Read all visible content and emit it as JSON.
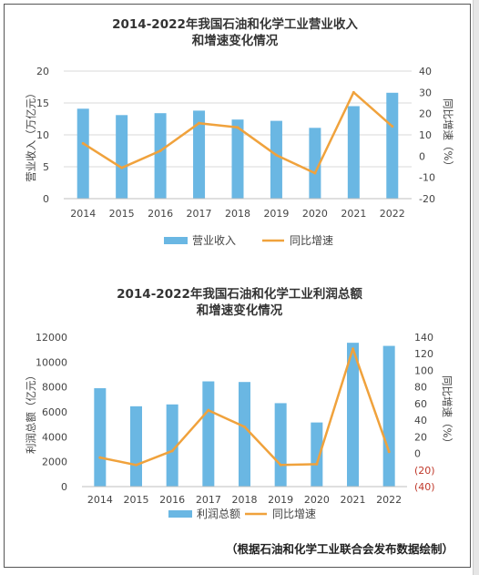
{
  "source_note": "（根据石油和化学工业联合会发布数据绘制）",
  "colors": {
    "bar": "#6ab7e3",
    "line": "#f0a23c",
    "grid": "#d9d9d9",
    "neg": "#c0392b"
  },
  "chart_data": [
    {
      "type": "bar+line",
      "title_lines": [
        "2014-2022年我国石油和化学工业营业收入",
        "和增速变化情况"
      ],
      "categories": [
        "2014",
        "2015",
        "2016",
        "2017",
        "2018",
        "2019",
        "2020",
        "2021",
        "2022"
      ],
      "series": [
        {
          "name": "营业收入",
          "type": "bar",
          "axis": "left",
          "values": [
            14.1,
            13.1,
            13.4,
            13.8,
            12.4,
            12.2,
            11.1,
            14.5,
            16.6
          ]
        },
        {
          "name": "同比增速",
          "type": "line",
          "axis": "right",
          "values": [
            6.0,
            -5.5,
            2.5,
            15.5,
            13.5,
            0.5,
            -8.0,
            30.0,
            14.0
          ]
        }
      ],
      "ylabel": "营业收入（万亿元）",
      "y2label": "同比增速（%）",
      "ylim": [
        0,
        20
      ],
      "yticks": [
        0,
        5,
        10,
        15,
        20
      ],
      "ytick_labels": [
        "0",
        "5",
        "10",
        "15",
        "20"
      ],
      "y2lim": [
        -20,
        40
      ],
      "y2ticks": [
        -20,
        -10,
        0,
        10,
        20,
        30,
        40
      ],
      "y2tick_labels": [
        "-20",
        "-10",
        "0",
        "10",
        "20",
        "30",
        "40"
      ],
      "grid": true,
      "legend_position": "bottom"
    },
    {
      "type": "bar+line",
      "title_lines": [
        "2014-2022年我国石油和化学工业利润总额",
        "和增速变化情况"
      ],
      "categories": [
        "2014",
        "2015",
        "2016",
        "2017",
        "2018",
        "2019",
        "2020",
        "2021",
        "2022"
      ],
      "series": [
        {
          "name": "利润总额",
          "type": "bar",
          "axis": "left",
          "values": [
            7900,
            6450,
            6600,
            8450,
            8400,
            6700,
            5150,
            11550,
            11300
          ]
        },
        {
          "name": "同比增速",
          "type": "line",
          "axis": "right",
          "values": [
            -5,
            -14,
            3,
            52,
            32,
            -14,
            -13,
            126,
            2
          ]
        }
      ],
      "ylabel": "利润总额（亿元）",
      "y2label": "同比增速（%）",
      "ylim": [
        0,
        12000
      ],
      "yticks": [
        0,
        2000,
        4000,
        6000,
        8000,
        10000,
        12000
      ],
      "ytick_labels": [
        "0",
        "2000",
        "4000",
        "6000",
        "8000",
        "10000",
        "12000"
      ],
      "y2lim": [
        -40,
        140
      ],
      "y2ticks": [
        -40,
        -20,
        0,
        20,
        40,
        60,
        80,
        100,
        120,
        140
      ],
      "y2tick_labels": [
        "(40)",
        "(20)",
        "0",
        "20",
        "40",
        "60",
        "80",
        "100",
        "120",
        "140"
      ],
      "grid": false,
      "legend_position": "bottom"
    }
  ]
}
